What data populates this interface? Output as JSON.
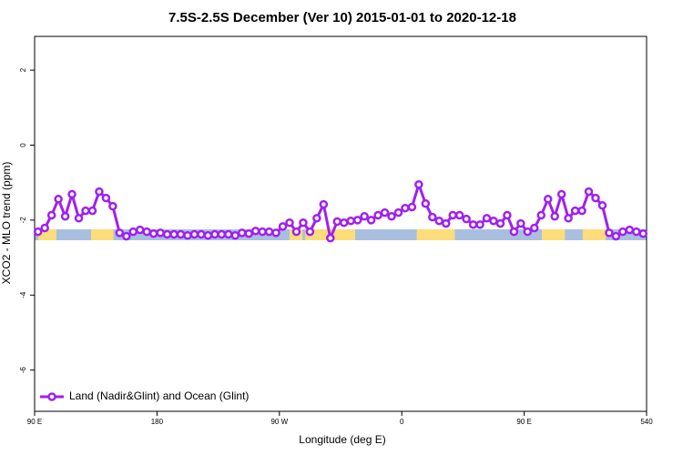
{
  "chart_data": {
    "type": "line",
    "title": "7.5S-2.5S December (Ver 10)   2015-01-01 to 2020-12-18",
    "x_label": "Longitude (deg E)",
    "y_label": "XCO2 - MLO trend (ppm)",
    "xlim": [
      90,
      540
    ],
    "ylim": [
      -7.1,
      2.9
    ],
    "xticks": [
      {
        "value": 90,
        "label": "90 E"
      },
      180,
      {
        "value": 270,
        "label": "90 W"
      },
      {
        "value": 360,
        "label": "0"
      },
      {
        "value": 450,
        "label": "90 E"
      },
      540
    ],
    "yticks": [
      2,
      0,
      -2,
      -4,
      -6
    ],
    "legend": "bottom-left",
    "land_color": "#fddc7a",
    "ocean_color": "#a9bfdf",
    "land_segments": [
      [
        92.7,
        106
      ],
      [
        131.5,
        148
      ],
      [
        277.5,
        287
      ],
      [
        289,
        325.7
      ],
      [
        371,
        399
      ],
      [
        463,
        480
      ],
      [
        493,
        510
      ]
    ],
    "x": [
      92.5,
      97.5,
      102.5,
      107.5,
      112.5,
      117.5,
      122.5,
      127.5,
      132.5,
      137.5,
      142.5,
      147.5,
      152.5,
      157.5,
      162.5,
      167.5,
      172.5,
      177.5,
      182.5,
      187.5,
      192.5,
      197.5,
      202.5,
      207.5,
      212.5,
      217.5,
      222.5,
      227.5,
      232.5,
      237.5,
      242.5,
      247.5,
      252.5,
      257.5,
      262.5,
      267.5,
      272.5,
      277.5,
      282.5,
      287.5,
      292.5,
      297.5,
      302.5,
      307.5,
      312.5,
      317.5,
      322.5,
      327.5,
      332.5,
      337.5,
      342.5,
      347.5,
      352.5,
      357.5,
      362.5,
      367.5,
      372.5,
      377.5,
      382.5,
      387.5,
      392.5,
      397.5,
      402.5,
      407.5,
      412.5,
      417.5,
      422.5,
      427.5,
      432.5,
      437.5,
      442.5,
      447.5,
      452.5,
      457.5,
      462.5,
      467.5,
      472.5,
      477.5,
      482.5,
      487.5,
      492.5,
      497.5,
      502.5,
      507.5,
      512.5,
      517.5,
      522.5,
      527.5,
      532.5,
      537.5
    ],
    "series": [
      {
        "name": "Land (Nadir&Glint) and Ocean (Glint)",
        "color": "#a020f0",
        "values": [
          -2.31,
          -2.21,
          -1.87,
          -1.44,
          -1.9,
          -1.31,
          -1.95,
          -1.75,
          -1.75,
          -1.24,
          -1.41,
          -1.63,
          -2.34,
          -2.43,
          -2.31,
          -2.26,
          -2.31,
          -2.36,
          -2.34,
          -2.38,
          -2.38,
          -2.38,
          -2.41,
          -2.38,
          -2.38,
          -2.41,
          -2.38,
          -2.38,
          -2.38,
          -2.41,
          -2.34,
          -2.36,
          -2.29,
          -2.31,
          -2.31,
          -2.34,
          -2.17,
          -2.07,
          -2.31,
          -2.07,
          -2.31,
          -1.95,
          -1.58,
          -2.48,
          -2.04,
          -2.07,
          -2.02,
          -2.0,
          -1.9,
          -2.0,
          -1.87,
          -1.8,
          -1.9,
          -1.8,
          -1.68,
          -1.65,
          -1.05,
          -1.56,
          -1.92,
          -2.02,
          -2.09,
          -1.87,
          -1.87,
          -1.97,
          -2.12,
          -2.12,
          -1.95,
          -2.02,
          -2.09,
          -1.87,
          -2.31,
          -2.09,
          -2.31,
          -2.21,
          -1.87,
          -1.44,
          -1.9,
          -1.31,
          -1.95,
          -1.75,
          -1.75,
          -1.24,
          -1.41,
          -1.61,
          -2.34,
          -2.43,
          -2.31,
          -2.26,
          -2.31,
          -2.36
        ]
      }
    ]
  }
}
